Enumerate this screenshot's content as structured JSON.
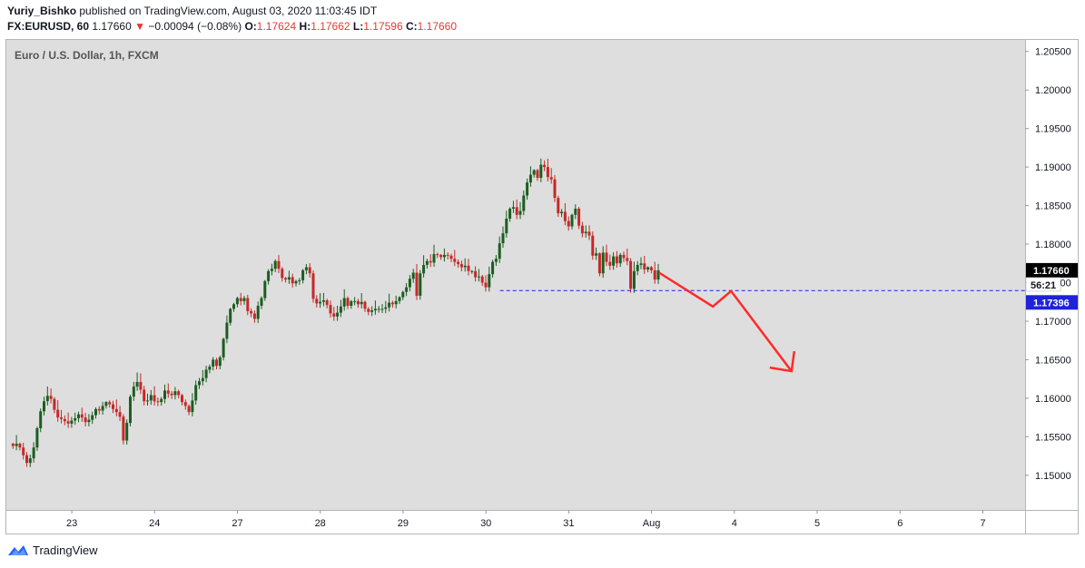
{
  "header": {
    "author": "Yuriy_Bishko",
    "published_text": "published on TradingView.com, August 03, 2020 11:03:45 IDT",
    "symbol": "FX:EURUSD, 60",
    "last": "1.17660",
    "change_arrow": "▼",
    "change": "−0.00094 (−0.08%)",
    "o_label": "O:",
    "o_value": "1.17624",
    "h_label": "H:",
    "h_value": "1.17662",
    "l_label": "L:",
    "l_value": "1.17596",
    "c_label": "C:",
    "c_value": "1.17660"
  },
  "footer": {
    "brand": "TradingView",
    "logo_icon": "tradingview-logo-icon"
  },
  "colors": {
    "background": "#dedede",
    "up": "#1b5e20",
    "down": "#c62828",
    "axis_text": "#131722",
    "dashed_line": "#1e1ee6",
    "arrow": "#ff2a2a",
    "price_tag_black": "#000000",
    "price_tag_blue": "#1e22d9"
  },
  "chart_data": {
    "type": "candlestick",
    "title": "Euro / U.S. Dollar, 1h, FXCM",
    "y_ticks": [
      "1.20500",
      "1.20000",
      "1.19500",
      "1.19000",
      "1.18500",
      "1.18000",
      "1.17500",
      "1.17000",
      "1.16500",
      "1.16000",
      "1.15500",
      "1.15000"
    ],
    "ylim": [
      1.1455,
      1.2065
    ],
    "x_tick_labels": [
      "23",
      "24",
      "27",
      "28",
      "29",
      "30",
      "31",
      "Aug",
      "4",
      "5",
      "6",
      "7"
    ],
    "x_tick_day_index": [
      0.71,
      1.71,
      2.71,
      3.71,
      4.71,
      5.71,
      6.71,
      7.71,
      8.71,
      9.71,
      10.71,
      11.71
    ],
    "x_range_days": [
      -0.08,
      12.22
    ],
    "last_price_label": "1.17660",
    "countdown_label": "56:21",
    "support_level_label": "1.17396",
    "support_level": 1.17396,
    "support_start_day": 5.88,
    "projection_path": [
      {
        "day": 7.8,
        "price": 1.1763
      },
      {
        "day": 8.45,
        "price": 1.1719
      },
      {
        "day": 8.67,
        "price": 1.1739
      },
      {
        "day": 9.4,
        "price": 1.1635
      }
    ],
    "projection_arrowhead_tip": {
      "day": 9.4,
      "price": 1.1635
    },
    "hourly_closes": [
      1.1538,
      1.1541,
      1.1536,
      1.1526,
      1.1516,
      1.1522,
      1.1536,
      1.1561,
      1.1583,
      1.1596,
      1.1603,
      1.1599,
      1.1585,
      1.1575,
      1.1573,
      1.157,
      1.1567,
      1.1571,
      1.1574,
      1.1579,
      1.1575,
      1.1569,
      1.1572,
      1.1578,
      1.1586,
      1.1584,
      1.159,
      1.1595,
      1.1592,
      1.1586,
      1.1582,
      1.1576,
      1.1545,
      1.1568,
      1.1602,
      1.1615,
      1.1621,
      1.1611,
      1.1596,
      1.1597,
      1.1604,
      1.1596,
      1.1595,
      1.1599,
      1.161,
      1.1606,
      1.1604,
      1.1609,
      1.1604,
      1.1595,
      1.159,
      1.1582,
      1.1597,
      1.1617,
      1.1622,
      1.1626,
      1.1637,
      1.1641,
      1.165,
      1.1642,
      1.1653,
      1.1677,
      1.1698,
      1.1716,
      1.1722,
      1.173,
      1.1726,
      1.173,
      1.1713,
      1.171,
      1.1703,
      1.172,
      1.173,
      1.1752,
      1.1765,
      1.1768,
      1.1778,
      1.1768,
      1.1756,
      1.1754,
      1.1757,
      1.1749,
      1.1752,
      1.1753,
      1.1766,
      1.177,
      1.1762,
      1.1729,
      1.1723,
      1.1725,
      1.1727,
      1.1721,
      1.171,
      1.1706,
      1.1711,
      1.1719,
      1.173,
      1.172,
      1.1726,
      1.1726,
      1.1722,
      1.1725,
      1.1716,
      1.1712,
      1.1714,
      1.1716,
      1.1716,
      1.1716,
      1.1718,
      1.1724,
      1.1722,
      1.1726,
      1.1731,
      1.1738,
      1.1744,
      1.1755,
      1.1763,
      1.1733,
      1.1762,
      1.1773,
      1.1778,
      1.1776,
      1.1787,
      1.1786,
      1.1783,
      1.1786,
      1.1785,
      1.1781,
      1.1777,
      1.1774,
      1.177,
      1.1772,
      1.1765,
      1.1765,
      1.1757,
      1.1758,
      1.175,
      1.1744,
      1.1761,
      1.1777,
      1.1781,
      1.1801,
      1.1814,
      1.1833,
      1.1846,
      1.1848,
      1.1838,
      1.1843,
      1.1863,
      1.188,
      1.189,
      1.1896,
      1.1886,
      1.1903,
      1.19,
      1.1887,
      1.1884,
      1.186,
      1.184,
      1.1842,
      1.183,
      1.1823,
      1.1838,
      1.1846,
      1.1824,
      1.1814,
      1.1816,
      1.1811,
      1.1785,
      1.1788,
      1.1762,
      1.1789,
      1.1777,
      1.1772,
      1.1784,
      1.1775,
      1.1786,
      1.1782,
      1.1778,
      1.1742,
      1.1765,
      1.1773,
      1.1775,
      1.1767,
      1.177,
      1.1766,
      1.1754,
      1.1766
    ]
  }
}
